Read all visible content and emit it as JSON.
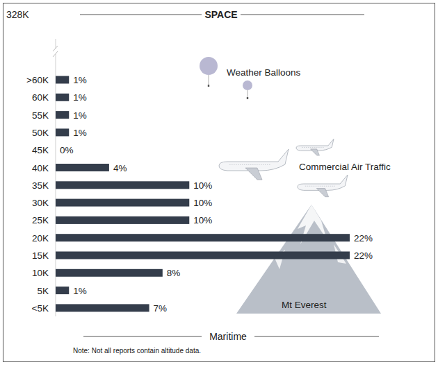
{
  "chart_data": {
    "type": "bar",
    "orientation": "horizontal",
    "title": "SPACE",
    "top_label": "328K",
    "bottom_label": "Maritime",
    "note": "Note: Not all reports contain altitude data.",
    "annotations": [
      "Weather Balloons",
      "Commercial Air Traffic",
      "Mt Everest"
    ],
    "categories": [
      ">60K",
      "60K",
      "55K",
      "50K",
      "45K",
      "40K",
      "35K",
      "30K",
      "25K",
      "20K",
      "15K",
      "10K",
      "5K",
      "<5K"
    ],
    "values": [
      1,
      1,
      1,
      1,
      0,
      4,
      10,
      10,
      10,
      22,
      22,
      8,
      1,
      7
    ],
    "value_labels": [
      "1%",
      "1%",
      "1%",
      "1%",
      "0%",
      "4%",
      "10%",
      "10%",
      "10%",
      "22%",
      "22%",
      "8%",
      "1%",
      "7%"
    ],
    "color": "#343d4b",
    "xlim": [
      0,
      22
    ],
    "data_labels": true,
    "tick_labels": "y",
    "grid": false
  }
}
